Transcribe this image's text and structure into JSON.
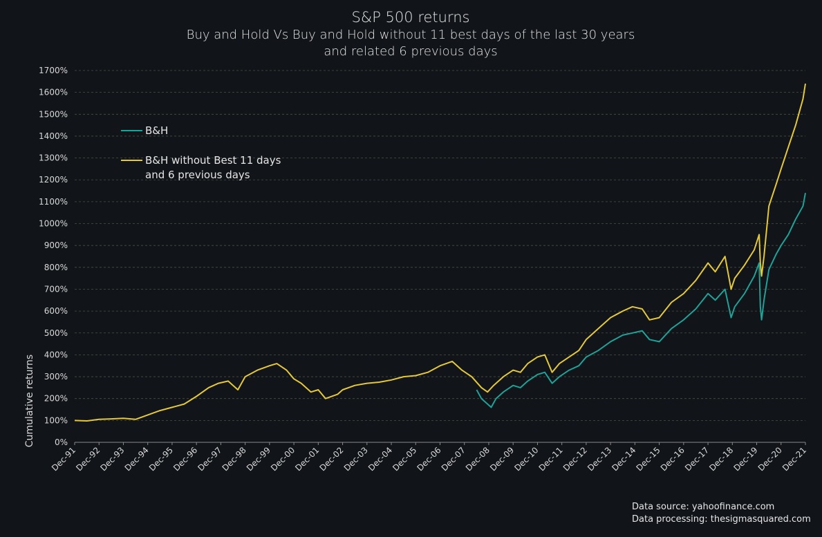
{
  "chart_data": {
    "type": "line",
    "title": "S&P 500 returns",
    "subtitle_line1": "Buy and Hold Vs Buy and Hold without 11 best days of the last 30 years",
    "subtitle_line2": "and related 6 previous days",
    "xlabel": "",
    "ylabel": "Cumulative returns",
    "ylim": [
      0,
      1700
    ],
    "y_ticks": [
      0,
      100,
      200,
      300,
      400,
      500,
      600,
      700,
      800,
      900,
      1000,
      1100,
      1200,
      1300,
      1400,
      1500,
      1600,
      1700
    ],
    "y_tick_labels": [
      "0%",
      "100%",
      "200%",
      "300%",
      "400%",
      "500%",
      "600%",
      "700%",
      "800%",
      "900%",
      "1000%",
      "1100%",
      "1200%",
      "1300%",
      "1400%",
      "1500%",
      "1600%",
      "1700%"
    ],
    "x_tick_labels": [
      "Dec-91",
      "Dec-92",
      "Dec-93",
      "Dec-94",
      "Dec-95",
      "Dec-96",
      "Dec-97",
      "Dec-98",
      "Dec-99",
      "Dec-00",
      "Dec-01",
      "Dec-02",
      "Dec-03",
      "Dec-04",
      "Dec-05",
      "Dec-06",
      "Dec-07",
      "Dec-08",
      "Dec-09",
      "Dec-10",
      "Dec-11",
      "Dec-12",
      "Dec-13",
      "Dec-14",
      "Dec-15",
      "Dec-16",
      "Dec-17",
      "Dec-18",
      "Dec-19",
      "Dec-20",
      "Dec-21"
    ],
    "grid": "horizontal",
    "legend_position": "top-left",
    "series": [
      {
        "name": "B&H",
        "color": "#1fa398",
        "x": [
          2008.5,
          2008.7,
          2008.9,
          2009.1,
          2009.3,
          2009.6,
          2010.0,
          2010.3,
          2010.6,
          2011.0,
          2011.3,
          2011.6,
          2011.9,
          2012.3,
          2012.7,
          2013.0,
          2013.5,
          2014.0,
          2014.5,
          2014.9,
          2015.3,
          2015.6,
          2016.0,
          2016.5,
          2017.0,
          2017.5,
          2018.0,
          2018.3,
          2018.7,
          2018.95,
          2019.1,
          2019.5,
          2019.9,
          2020.1,
          2020.15,
          2020.2,
          2020.3,
          2020.5,
          2020.8,
          2021.0,
          2021.3,
          2021.6,
          2021.9,
          2022.0
        ],
        "values": [
          240,
          200,
          180,
          160,
          200,
          230,
          260,
          250,
          280,
          310,
          320,
          270,
          300,
          330,
          350,
          390,
          420,
          460,
          490,
          500,
          510,
          470,
          460,
          520,
          560,
          610,
          680,
          650,
          700,
          570,
          620,
          680,
          760,
          820,
          620,
          560,
          650,
          790,
          860,
          900,
          950,
          1020,
          1080,
          1140
        ]
      },
      {
        "name": "B&H without Best 11 days and 6 previous days",
        "color": "#e5c93a",
        "x": [
          1992.0,
          1992.5,
          1993.0,
          1993.5,
          1994.0,
          1994.5,
          1995.0,
          1995.5,
          1996.0,
          1996.5,
          1997.0,
          1997.5,
          1997.9,
          1998.3,
          1998.7,
          1999.0,
          1999.5,
          2000.0,
          2000.3,
          2000.7,
          2001.0,
          2001.3,
          2001.7,
          2002.0,
          2002.3,
          2002.8,
          2003.0,
          2003.5,
          2004.0,
          2004.5,
          2005.0,
          2005.5,
          2006.0,
          2006.5,
          2007.0,
          2007.5,
          2007.9,
          2008.3,
          2008.7,
          2008.95,
          2009.2,
          2009.6,
          2010.0,
          2010.3,
          2010.6,
          2011.0,
          2011.3,
          2011.6,
          2011.9,
          2012.3,
          2012.7,
          2013.0,
          2013.5,
          2014.0,
          2014.5,
          2014.9,
          2015.3,
          2015.6,
          2016.0,
          2016.5,
          2017.0,
          2017.5,
          2018.0,
          2018.3,
          2018.7,
          2018.95,
          2019.1,
          2019.5,
          2019.9,
          2020.1,
          2020.15,
          2020.2,
          2020.3,
          2020.5,
          2020.8,
          2021.0,
          2021.3,
          2021.6,
          2021.9,
          2022.0
        ],
        "values": [
          100,
          98,
          105,
          107,
          110,
          105,
          125,
          145,
          160,
          175,
          210,
          250,
          270,
          280,
          240,
          300,
          330,
          350,
          360,
          330,
          290,
          270,
          230,
          240,
          200,
          220,
          240,
          260,
          270,
          275,
          285,
          300,
          305,
          320,
          350,
          370,
          330,
          300,
          250,
          230,
          260,
          300,
          330,
          320,
          360,
          390,
          400,
          320,
          360,
          390,
          420,
          470,
          520,
          570,
          600,
          620,
          610,
          560,
          570,
          640,
          680,
          740,
          820,
          780,
          850,
          700,
          750,
          810,
          880,
          950,
          820,
          760,
          850,
          1080,
          1180,
          1250,
          1350,
          1450,
          1570,
          1640
        ]
      }
    ]
  },
  "footer": {
    "source_line1": "Data source: yahoofinance.com",
    "source_line2": "Data processing: thesigmasquared.com"
  }
}
